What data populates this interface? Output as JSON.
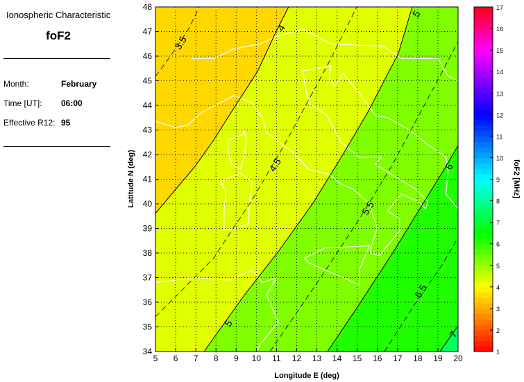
{
  "info": {
    "heading": "Ionospheric Characteristic",
    "parameter": "foF2",
    "month_label": "Month:",
    "month": "February",
    "time_label": "Time [UT]:",
    "time": "06:00",
    "r12_label": "Effective R12:",
    "r12": "95"
  },
  "chart_data": {
    "type": "contour",
    "xlabel": "Longitude E (deg)",
    "ylabel": "Latitude N (deg)",
    "xlim": [
      5,
      20
    ],
    "ylim": [
      34,
      48
    ],
    "xticks": [
      "5",
      "6",
      "7",
      "8",
      "9",
      "10",
      "11",
      "12",
      "13",
      "14",
      "15",
      "16",
      "17",
      "18",
      "19",
      "20"
    ],
    "yticks": [
      "34",
      "35",
      "36",
      "37",
      "38",
      "39",
      "40",
      "41",
      "42",
      "43",
      "44",
      "45",
      "46",
      "47",
      "48"
    ],
    "grid": "dotted",
    "colorbar": {
      "label": "foF2 [MHz]",
      "range": [
        1,
        17
      ],
      "ticks": [
        "1",
        "2",
        "3",
        "4",
        "5",
        "6",
        "7",
        "8",
        "9",
        "10",
        "11",
        "12",
        "13",
        "14",
        "15",
        "16",
        "17"
      ]
    },
    "fill_colors": {
      "below_4": "#FFD800",
      "4_to_5": "#E0FF00",
      "5_to_6": "#80FF00",
      "6_to_7": "#20FF00",
      "above_7": "#00FF60"
    },
    "contours": [
      {
        "level": "3.5",
        "style": "dashed",
        "points": [
          [
            5,
            45.18
          ],
          [
            5.69,
            45.94
          ],
          [
            6.62,
            47.07
          ],
          [
            7.13,
            47.92
          ],
          [
            7.17,
            48
          ]
        ],
        "labels": [
          [
            6.24,
            46.54
          ]
        ]
      },
      {
        "level": "4",
        "style": "solid",
        "points": [
          [
            5,
            39.61
          ],
          [
            6.96,
            41.52
          ],
          [
            7.86,
            42.56
          ],
          [
            9.02,
            44.06
          ],
          [
            10.06,
            45.38
          ],
          [
            11.02,
            47.07
          ],
          [
            11.6,
            48
          ]
        ],
        "labels": [
          [
            11.23,
            47.15
          ]
        ]
      },
      {
        "level": "4.5",
        "style": "dashed",
        "points": [
          [
            5,
            35.41
          ],
          [
            7.86,
            37.77
          ],
          [
            9.82,
            40.2
          ],
          [
            11.43,
            42.45
          ],
          [
            13.6,
            45.75
          ],
          [
            14.98,
            48
          ]
        ],
        "labels": [
          [
            10.92,
            41.58
          ]
        ]
      },
      {
        "level": "5",
        "style": "solid",
        "points": [
          [
            7.41,
            34
          ],
          [
            9.37,
            36.25
          ],
          [
            11.09,
            38.06
          ],
          [
            12.81,
            40.03
          ],
          [
            14.29,
            42
          ],
          [
            15.56,
            43.77
          ],
          [
            17.04,
            46.11
          ],
          [
            17.73,
            48
          ]
        ],
        "labels": [
          [
            8.61,
            35.15
          ],
          [
            17.93,
            47.72
          ]
        ]
      },
      {
        "level": "5.5",
        "style": "dashed",
        "points": [
          [
            10.68,
            34
          ],
          [
            13.36,
            37.21
          ],
          [
            15.08,
            39.35
          ],
          [
            16.7,
            41.52
          ],
          [
            18.86,
            44.82
          ],
          [
            20,
            46.59
          ]
        ],
        "labels": [
          [
            15.53,
            39.83
          ]
        ]
      },
      {
        "level": "6",
        "style": "solid",
        "points": [
          [
            13.53,
            34
          ],
          [
            15.08,
            35.89
          ],
          [
            16.8,
            38.06
          ],
          [
            18.07,
            39.75
          ],
          [
            19.34,
            41.44
          ],
          [
            20,
            42.37
          ]
        ],
        "labels": [
          [
            19.55,
            41.52
          ]
        ]
      },
      {
        "level": "6.5",
        "style": "dashed",
        "points": [
          [
            16.35,
            34
          ],
          [
            17.83,
            35.89
          ],
          [
            19.1,
            37.38
          ],
          [
            20,
            38.62
          ]
        ],
        "labels": [
          [
            18.14,
            36.45
          ]
        ]
      },
      {
        "level": "7",
        "style": "solid",
        "points": [
          [
            19.1,
            34
          ],
          [
            20,
            35.04
          ]
        ],
        "labels": [
          [
            19.76,
            34.7
          ]
        ]
      }
    ]
  }
}
